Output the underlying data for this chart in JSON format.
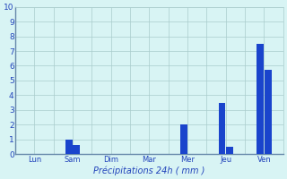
{
  "categories": [
    "Lun",
    "Sam",
    "Dim",
    "Mar",
    "Mer",
    "Jeu",
    "Ven"
  ],
  "bars": [
    {
      "day": "Lun",
      "values": [
        0,
        0
      ]
    },
    {
      "day": "Sam",
      "values": [
        1.0,
        0.6
      ]
    },
    {
      "day": "Dim",
      "values": [
        0,
        0
      ]
    },
    {
      "day": "Mar",
      "values": [
        0,
        0
      ]
    },
    {
      "day": "Mer",
      "values": [
        2.0,
        0
      ]
    },
    {
      "day": "Jeu",
      "values": [
        3.5,
        0.5
      ]
    },
    {
      "day": "Ven",
      "values": [
        7.5,
        5.7
      ]
    }
  ],
  "bar_color": "#1a44cc",
  "background_color": "#d8f4f4",
  "grid_color": "#aacccc",
  "axis_color": "#6688aa",
  "text_color": "#2244bb",
  "xlabel": "Précipitations 24h ( mm )",
  "ylim": [
    0,
    10
  ],
  "yticks": [
    0,
    1,
    2,
    3,
    4,
    5,
    6,
    7,
    8,
    9,
    10
  ],
  "bar_width": 0.18,
  "figsize": [
    3.2,
    2.0
  ],
  "dpi": 100
}
